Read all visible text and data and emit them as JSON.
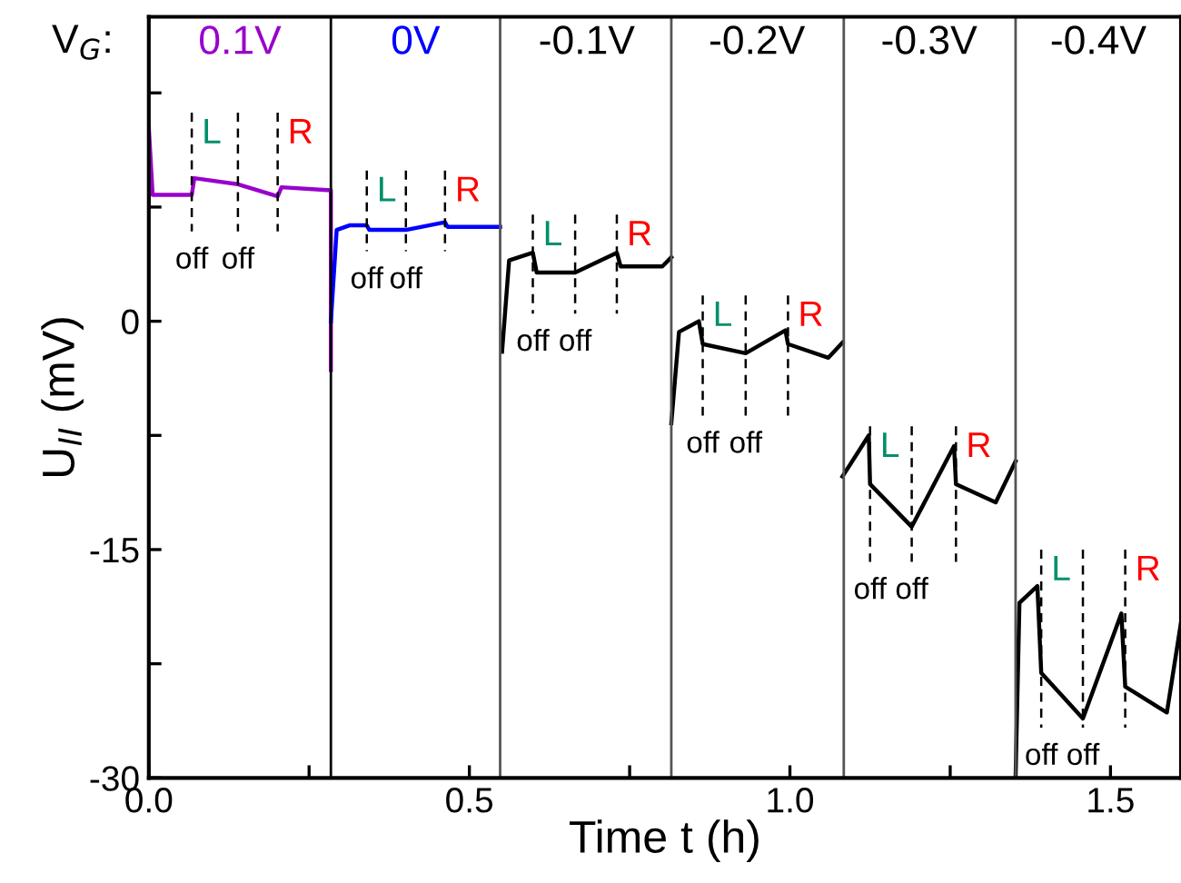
{
  "chart_data": {
    "type": "line",
    "xlabel": "Time t (h)",
    "ylabel": "U$_{II}$ (mV)",
    "xlim": [
      0,
      1.61
    ],
    "ylim": [
      -30,
      20
    ],
    "xticks": [
      {
        "value": 0,
        "label": "0.0"
      },
      {
        "value": 0.25,
        "label": null
      },
      0.5,
      {
        "value": 0.75,
        "label": null
      },
      {
        "value": 1,
        "label": "1.0"
      },
      {
        "value": 1.25,
        "label": null
      },
      1.5
    ],
    "yticks": [
      -30,
      {
        "value": -22.5,
        "label": null
      },
      -15,
      {
        "value": -7.5,
        "label": null
      },
      0,
      {
        "value": 7.5,
        "label": null
      },
      {
        "value": 15,
        "label": null
      }
    ],
    "grid": false,
    "legend": false,
    "marker": "none",
    "line_style": "solid",
    "series": [
      {
        "color": "#9900cc",
        "x": [
          0,
          0,
          0.006,
          0.067,
          0.071,
          0.139,
          0.201,
          0.207,
          0.284,
          0.284
        ],
        "values": [
          7.6,
          12.7,
          8.3,
          8.3,
          9.4,
          9.0,
          8.2,
          8.8,
          8.6,
          -3.2
        ]
      },
      {
        "color": "#0000ff",
        "x": [
          0.284,
          0.293,
          0.313,
          0.34,
          0.344,
          0.401,
          0.462,
          0.466,
          0.548
        ],
        "values": [
          0,
          6.0,
          6.3,
          6.3,
          6.0,
          6.0,
          6.5,
          6.2,
          6.2
        ]
      },
      {
        "color": "#000000",
        "x": [
          0.551,
          0.562,
          0.599,
          0.605,
          0.665,
          0.73,
          0.736,
          0.801,
          0.815
        ],
        "values": [
          -2.0,
          4.0,
          4.5,
          3.2,
          3.2,
          4.5,
          3.6,
          3.6,
          4.2
        ]
      },
      {
        "color": "#000000",
        "x": [
          0.815,
          0.827,
          0.858,
          0.864,
          0.931,
          0.993,
          0.997,
          1.06,
          1.082
        ],
        "values": [
          -6.7,
          -0.7,
          0,
          -1.5,
          -2.1,
          -0.6,
          -1.5,
          -2.4,
          -1.4
        ]
      },
      {
        "color": "#000000",
        "x": [
          1.082,
          1.123,
          1.125,
          1.19,
          1.256,
          1.259,
          1.321,
          1.352
        ],
        "values": [
          -10.2,
          -7.5,
          -10.7,
          -13.5,
          -8.2,
          -10.7,
          -11.9,
          -9.2
        ]
      },
      {
        "color": "#000000",
        "x": [
          1.352,
          1.358,
          1.386,
          1.392,
          1.457,
          1.517,
          1.523,
          1.588,
          1.61
        ],
        "values": [
          -30,
          -18.5,
          -17.4,
          -23.1,
          -26.1,
          -19.2,
          -24.0,
          -25.7,
          -19.8
        ]
      },
      {
        "color": "#000000",
        "line_style": "dashed",
        "x": [
          0.067,
          0.067
        ],
        "values": [
          13.7,
          5.9
        ]
      },
      {
        "color": "#000000",
        "line_style": "dashed",
        "x": [
          0.139,
          0.139
        ],
        "values": [
          13.7,
          5.9
        ]
      },
      {
        "color": "#000000",
        "line_style": "dashed",
        "x": [
          0.201,
          0.201
        ],
        "values": [
          13.7,
          5.9
        ]
      },
      {
        "color": "#000000",
        "line_style": "dashed",
        "x": [
          0.34,
          0.34
        ],
        "values": [
          9.9,
          4.6
        ]
      },
      {
        "color": "#000000",
        "line_style": "dashed",
        "x": [
          0.401,
          0.401
        ],
        "values": [
          9.9,
          4.6
        ]
      },
      {
        "color": "#000000",
        "line_style": "dashed",
        "x": [
          0.462,
          0.462
        ],
        "values": [
          9.9,
          4.6
        ]
      },
      {
        "color": "#000000",
        "line_style": "dashed",
        "x": [
          0.599,
          0.599
        ],
        "values": [
          7.0,
          0.5
        ]
      },
      {
        "color": "#000000",
        "line_style": "dashed",
        "x": [
          0.665,
          0.665
        ],
        "values": [
          7.0,
          0.5
        ]
      },
      {
        "color": "#000000",
        "line_style": "dashed",
        "x": [
          0.73,
          0.73
        ],
        "values": [
          7.0,
          0.5
        ]
      },
      {
        "color": "#000000",
        "line_style": "dashed",
        "x": [
          0.864,
          0.864
        ],
        "values": [
          1.7,
          -6.2
        ]
      },
      {
        "color": "#000000",
        "line_style": "dashed",
        "x": [
          0.931,
          0.931
        ],
        "values": [
          1.7,
          -6.2
        ]
      },
      {
        "color": "#000000",
        "line_style": "dashed",
        "x": [
          0.997,
          0.997
        ],
        "values": [
          1.7,
          -6.2
        ]
      },
      {
        "color": "#000000",
        "line_style": "dashed",
        "x": [
          1.125,
          1.125
        ],
        "values": [
          -6.9,
          -15.8
        ]
      },
      {
        "color": "#000000",
        "line_style": "dashed",
        "x": [
          1.19,
          1.19
        ],
        "values": [
          -6.9,
          -15.8
        ]
      },
      {
        "color": "#000000",
        "line_style": "dashed",
        "x": [
          1.259,
          1.259
        ],
        "values": [
          -6.9,
          -15.8
        ]
      },
      {
        "color": "#000000",
        "line_style": "dashed",
        "x": [
          1.392,
          1.392
        ],
        "values": [
          -15.0,
          -26.7
        ]
      },
      {
        "color": "#000000",
        "line_style": "dashed",
        "x": [
          1.457,
          1.457
        ],
        "values": [
          -15.0,
          -26.7
        ]
      },
      {
        "color": "#000000",
        "line_style": "dashed",
        "x": [
          1.523,
          1.523
        ],
        "values": [
          -15.0,
          -26.7
        ]
      }
    ],
    "ref_lines": [
      {
        "axis": "x",
        "value": 0.284,
        "color": "#000000"
      },
      {
        "axis": "x",
        "value": 0.548,
        "color": "#555555"
      },
      {
        "axis": "x",
        "value": 0.815,
        "color": "#555555"
      },
      {
        "axis": "x",
        "value": 1.084,
        "color": "#555555"
      },
      {
        "axis": "x",
        "value": 1.352,
        "color": "#555555"
      }
    ],
    "annotations": [
      "V$_{G}$:",
      "0.1V",
      "0V",
      "-0.1V",
      "-0.2V",
      "-0.3V",
      "-0.4V",
      {
        "text": "L",
        "x": 0.067,
        "y": 13.7
      },
      {
        "text": "R",
        "x": 0.201,
        "y": 13.7
      },
      {
        "text": "off",
        "x": 0.067,
        "y": 5.9
      },
      {
        "text": "off",
        "x": 0.139,
        "y": 5.9
      },
      {
        "text": "L",
        "x": 0.34,
        "y": 9.9
      },
      {
        "text": "R",
        "x": 0.462,
        "y": 9.9
      },
      {
        "text": "off",
        "x": 0.34,
        "y": 4.6
      },
      {
        "text": "off",
        "x": 0.401,
        "y": 4.6
      },
      {
        "text": "L",
        "x": 0.599,
        "y": 7.0
      },
      {
        "text": "R",
        "x": 0.73,
        "y": 7.0
      },
      {
        "text": "off",
        "x": 0.599,
        "y": 0.5
      },
      {
        "text": "off",
        "x": 0.665,
        "y": 0.5
      },
      {
        "text": "L",
        "x": 0.864,
        "y": 1.7
      },
      {
        "text": "R",
        "x": 0.997,
        "y": 1.7
      },
      {
        "text": "off",
        "x": 0.864,
        "y": -6.2
      },
      {
        "text": "off",
        "x": 0.931,
        "y": -6.2
      },
      {
        "text": "L",
        "x": 1.125,
        "y": -6.9
      },
      {
        "text": "R",
        "x": 1.259,
        "y": -6.9
      },
      {
        "text": "off",
        "x": 1.125,
        "y": -15.8
      },
      {
        "text": "off",
        "x": 1.19,
        "y": -15.8
      },
      {
        "text": "L",
        "x": 1.392,
        "y": -15.0
      },
      {
        "text": "R",
        "x": 1.523,
        "y": -15.0
      },
      {
        "text": "off",
        "x": 1.392,
        "y": -26.7
      },
      {
        "text": "off",
        "x": 1.457,
        "y": -26.7
      }
    ]
  }
}
